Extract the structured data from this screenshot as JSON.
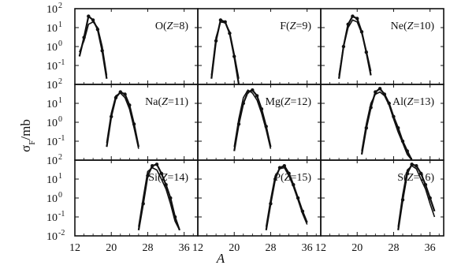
{
  "chart_data": {
    "type": "line",
    "layout": "3x3 panel grid",
    "xlabel": "A",
    "ylabel": "σF/mb",
    "xlim": [
      12,
      39
    ],
    "x_ticks": [
      12,
      20,
      28,
      36
    ],
    "y_scale": "log",
    "ylim": [
      0.01,
      100
    ],
    "y_tick_labels": {
      "row1": [
        "10^2",
        "10^1",
        "10^0",
        "10^-1",
        "10^2"
      ],
      "row2": [
        "10^1",
        "10^0",
        "10^-1"
      ],
      "row3": [
        "10^2",
        "10^1",
        "10^0",
        "10^-1",
        "10^-2"
      ]
    },
    "panels": [
      {
        "label": "O(Z=8)",
        "label_parts": [
          "O(",
          "Z",
          "=8)"
        ],
        "series": [
          {
            "x": [
              13,
              14,
              15,
              16,
              17,
              18,
              19
            ],
            "y": [
              0.3,
              3,
              40,
              25,
              8,
              0.6,
              0.02
            ]
          },
          {
            "x": [
              13,
              14,
              15,
              16,
              17,
              18,
              19
            ],
            "y": [
              0.5,
              2,
              15,
              20,
              10,
              1,
              0.03
            ]
          }
        ]
      },
      {
        "label": "F(Z=9)",
        "label_parts": [
          "F(",
          "Z",
          "=9)"
        ],
        "series": [
          {
            "x": [
              15,
              16,
              17,
              18,
              19,
              20,
              21
            ],
            "y": [
              0.02,
              2,
              25,
              20,
              5,
              0.3,
              0.01
            ]
          },
          {
            "x": [
              15,
              16,
              17,
              18,
              19,
              20,
              21
            ],
            "y": [
              0.03,
              3,
              20,
              18,
              6,
              0.4,
              0.02
            ]
          }
        ]
      },
      {
        "label": "Ne(Z=10)",
        "label_parts": [
          "Ne(",
          "Z",
          "=10)"
        ],
        "series": [
          {
            "x": [
              16,
              17,
              18,
              19,
              20,
              21,
              22,
              23
            ],
            "y": [
              0.02,
              1,
              15,
              40,
              30,
              6,
              0.5,
              0.03
            ]
          },
          {
            "x": [
              16,
              17,
              18,
              19,
              20,
              21,
              22,
              23
            ],
            "y": [
              0.03,
              1,
              10,
              25,
              20,
              5,
              0.6,
              0.05
            ]
          }
        ]
      },
      {
        "label": "Na(Z=11)",
        "label_parts": [
          "Na(",
          "Z",
          "=11)"
        ],
        "series": [
          {
            "x": [
              19,
              20,
              21,
              22,
              23,
              24,
              25,
              26
            ],
            "y": [
              0.05,
              2,
              20,
              40,
              30,
              8,
              0.8,
              0.05
            ]
          },
          {
            "x": [
              19,
              20,
              21,
              22,
              23,
              24,
              25,
              26
            ],
            "y": [
              0.08,
              3,
              25,
              35,
              20,
              5,
              0.5,
              0.04
            ]
          }
        ]
      },
      {
        "label": "Mg(Z=12)",
        "label_parts": [
          "Mg(",
          "Z",
          "=12)"
        ],
        "series": [
          {
            "x": [
              20,
              21,
              22,
              23,
              24,
              25,
              26,
              27,
              28
            ],
            "y": [
              0.03,
              0.8,
              10,
              40,
              50,
              25,
              5,
              0.6,
              0.05
            ]
          },
          {
            "x": [
              20,
              21,
              22,
              23,
              24,
              25,
              26,
              27,
              28
            ],
            "y": [
              0.05,
              1.5,
              20,
              50,
              35,
              15,
              3,
              0.4,
              0.04
            ]
          }
        ]
      },
      {
        "label": "Al(Z=13)",
        "label_parts": [
          "Al(",
          "Z",
          "=13)"
        ],
        "series": [
          {
            "x": [
              21,
              22,
              23,
              24,
              25,
              26,
              27,
              28,
              29,
              30,
              31,
              32
            ],
            "y": [
              0.02,
              0.5,
              6,
              40,
              60,
              30,
              10,
              2,
              0.5,
              0.1,
              0.03,
              0.01
            ]
          },
          {
            "x": [
              21,
              22,
              23,
              24,
              25,
              26,
              27,
              28,
              29,
              30,
              31,
              32
            ],
            "y": [
              0.03,
              0.8,
              10,
              30,
              40,
              25,
              8,
              1.5,
              0.3,
              0.08,
              0.02,
              0.01
            ]
          }
        ]
      },
      {
        "label": "Si(Z=14)",
        "label_parts": [
          "Si(",
          "Z",
          "=14)"
        ],
        "series": [
          {
            "x": [
              26,
              27,
              28,
              29,
              30,
              31,
              32,
              33,
              34,
              35
            ],
            "y": [
              0.02,
              0.5,
              15,
              50,
              60,
              20,
              5,
              1,
              0.1,
              0.02
            ]
          },
          {
            "x": [
              26,
              27,
              28,
              29,
              30,
              31,
              32,
              33,
              34,
              35
            ],
            "y": [
              0.03,
              1,
              25,
              40,
              30,
              10,
              3,
              0.5,
              0.06,
              0.02
            ]
          }
        ]
      },
      {
        "label": "P(Z=15)",
        "label_parts": [
          "P(",
          "Z",
          "=15)"
        ],
        "series": [
          {
            "x": [
              27,
              28,
              29,
              30,
              31,
              32,
              33,
              34,
              35,
              36
            ],
            "y": [
              0.02,
              0.5,
              10,
              40,
              50,
              20,
              5,
              1,
              0.2,
              0.05
            ]
          },
          {
            "x": [
              27,
              28,
              29,
              30,
              31,
              32,
              33,
              34,
              35,
              36
            ],
            "y": [
              0.03,
              0.8,
              15,
              35,
              40,
              15,
              4,
              0.8,
              0.15,
              0.04
            ]
          }
        ]
      },
      {
        "label": "S(Z=16)",
        "label_parts": [
          "S(",
          "Z",
          "=16)"
        ],
        "series": [
          {
            "x": [
              29,
              30,
              31,
              32,
              33,
              34,
              35,
              36,
              37
            ],
            "y": [
              0.02,
              0.8,
              20,
              60,
              50,
              20,
              5,
              1,
              0.2
            ]
          },
          {
            "x": [
              29,
              30,
              31,
              32,
              33,
              34,
              35,
              36,
              37
            ],
            "y": [
              0.03,
              1.5,
              30,
              50,
              35,
              10,
              3,
              0.5,
              0.1
            ]
          }
        ]
      }
    ],
    "grid": false,
    "legend": "none"
  }
}
